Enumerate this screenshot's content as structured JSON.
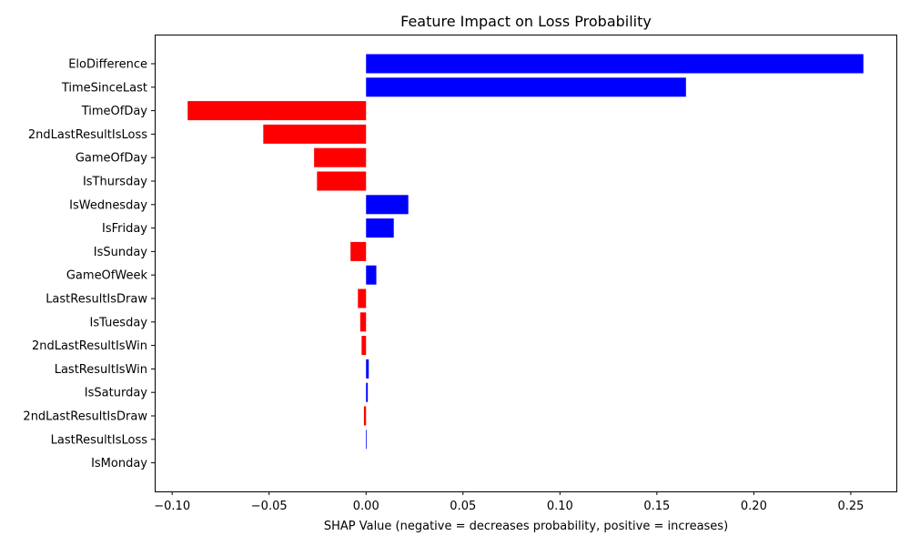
{
  "chart_data": {
    "type": "bar",
    "orientation": "horizontal",
    "title": "Feature Impact on Loss Probability",
    "xlabel": "SHAP Value (negative = decreases probability, positive = increases)",
    "ylabel": "",
    "xlim": [
      -0.109,
      0.2735
    ],
    "xticks": [
      -0.1,
      -0.05,
      0.0,
      0.05,
      0.1,
      0.15,
      0.2,
      0.25
    ],
    "xtick_labels": [
      "−0.10",
      "−0.05",
      "0.00",
      "0.05",
      "0.10",
      "0.15",
      "0.20",
      "0.25"
    ],
    "grid": false,
    "legend": "none",
    "colors": {
      "positive": "#0000ff",
      "negative": "#ff0000",
      "axis": "#000000"
    },
    "categories": [
      "EloDifference",
      "TimeSinceLast",
      "TimeOfDay",
      "2ndLastResultIsLoss",
      "GameOfDay",
      "IsThursday",
      "IsWednesday",
      "IsFriday",
      "IsSunday",
      "GameOfWeek",
      "LastResultIsDraw",
      "IsTuesday",
      "2ndLastResultIsWin",
      "LastResultIsWin",
      "IsSaturday",
      "2ndLastResultIsDraw",
      "LastResultIsLoss",
      "IsMonday"
    ],
    "values": [
      0.2565,
      0.165,
      -0.092,
      -0.053,
      -0.0268,
      -0.0253,
      0.0218,
      0.0143,
      -0.008,
      0.0053,
      -0.0042,
      -0.003,
      -0.0023,
      0.0014,
      0.0009,
      -0.0011,
      0.0003,
      0.0
    ]
  }
}
